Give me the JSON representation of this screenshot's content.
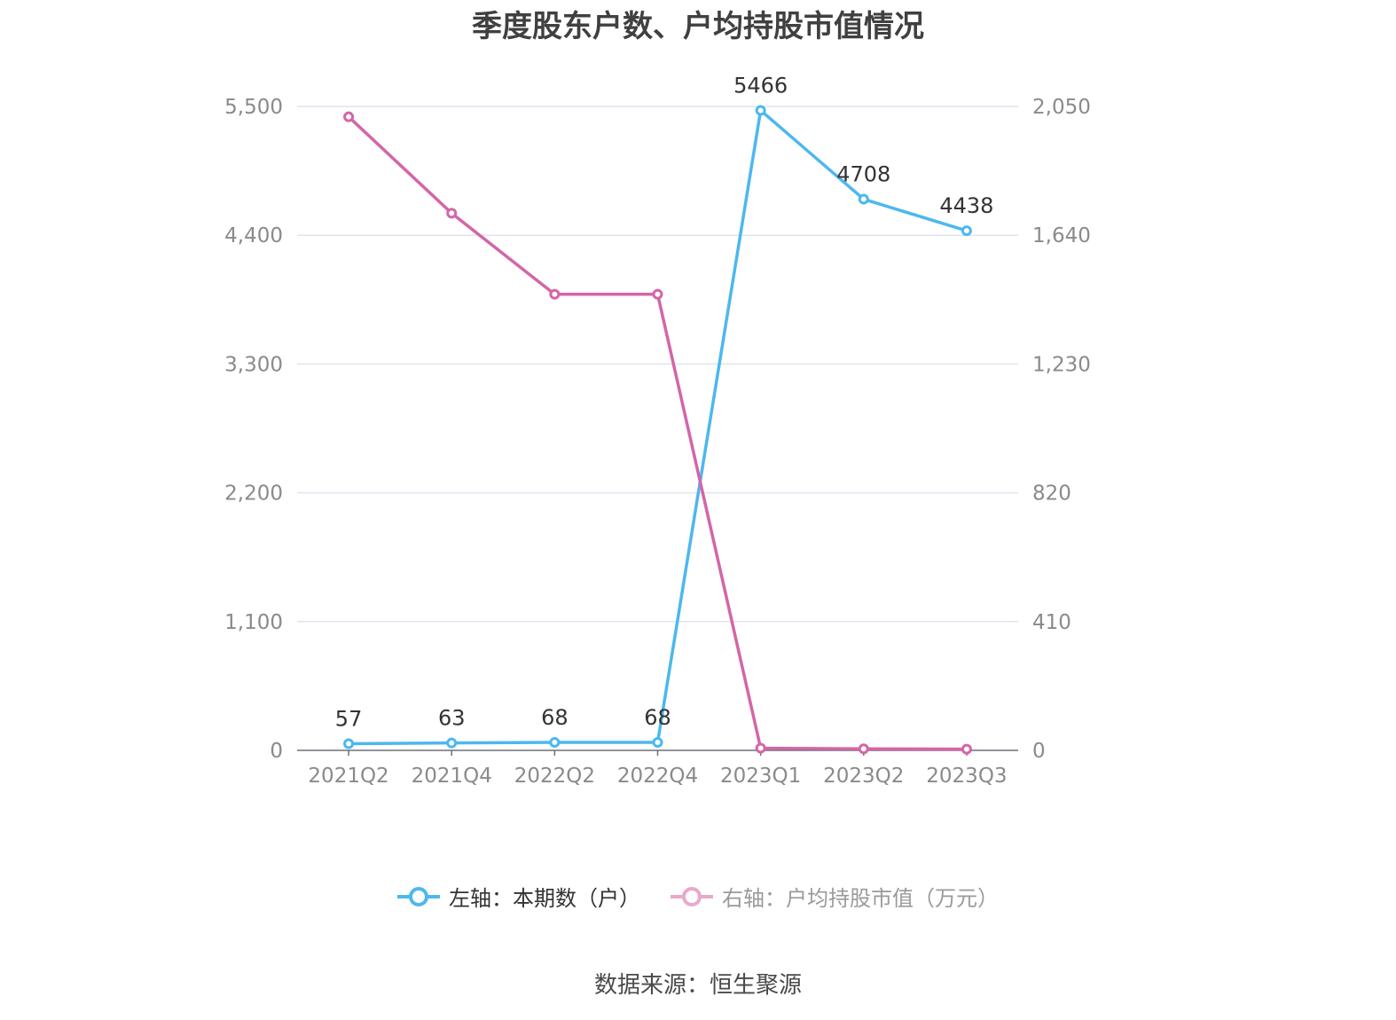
{
  "chart_data": {
    "type": "line",
    "title": "季度股东户数、户均持股市值情况",
    "categories": [
      "2021Q2",
      "2021Q4",
      "2022Q2",
      "2022Q4",
      "2023Q1",
      "2023Q2",
      "2023Q3"
    ],
    "left_axis": {
      "ylim": [
        0,
        5500
      ],
      "ticks": [
        0,
        1100,
        2200,
        3300,
        4400,
        5500
      ],
      "tick_labels": [
        "0",
        "1,100",
        "2,200",
        "3,300",
        "4,400",
        "5,500"
      ]
    },
    "right_axis": {
      "ylim": [
        0,
        2050
      ],
      "ticks": [
        0,
        410,
        820,
        1230,
        1640,
        2050
      ],
      "tick_labels": [
        "0",
        "410",
        "820",
        "1,230",
        "1,640",
        "2,050"
      ]
    },
    "series": [
      {
        "name": "左轴：本期数（户）",
        "axis": "left",
        "color": "#4cb8ee",
        "values": [
          57,
          63,
          68,
          68,
          5466,
          4708,
          4438
        ],
        "labels": [
          "57",
          "63",
          "68",
          "68",
          "5466",
          "4708",
          "4438"
        ]
      },
      {
        "name": "右轴：户均持股市值（万元）",
        "axis": "right",
        "color": "#d465a8",
        "values": [
          2017,
          1710,
          1452,
          1452,
          7,
          5,
          4
        ]
      }
    ],
    "grid": true,
    "legend_position": "bottom"
  },
  "legend": {
    "left_label": "左轴：本期数（户）",
    "right_label": "右轴：户均持股市值（万元）"
  },
  "source": "数据来源：恒生聚源"
}
